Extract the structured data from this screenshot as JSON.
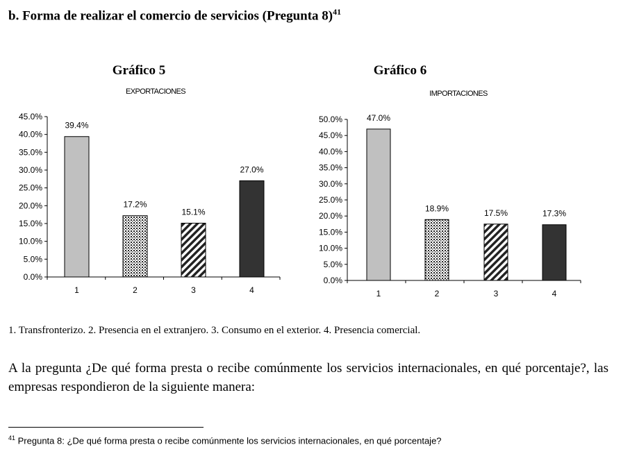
{
  "heading": {
    "text": "b. Forma de realizar el comercio de servicios (Pregunta 8)",
    "footnote_ref": "41"
  },
  "chart_data": [
    {
      "type": "bar",
      "title": "Gráfico 5",
      "subtitle": "EXPORTACIONES",
      "categories": [
        "1",
        "2",
        "3",
        "4"
      ],
      "values": [
        39.4,
        17.2,
        15.1,
        27.0
      ],
      "data_labels": [
        "39.4%",
        "17.2%",
        "15.1%",
        "27.0%"
      ],
      "fills": [
        "solid-gray",
        "dots",
        "diagonal-stripes",
        "solid-dark"
      ],
      "ylim": [
        0,
        45
      ],
      "yticks": [
        "0.0%",
        "5.0%",
        "10.0%",
        "15.0%",
        "20.0%",
        "25.0%",
        "30.0%",
        "35.0%",
        "40.0%",
        "45.0%"
      ],
      "xlabel": "",
      "ylabel": "",
      "grid": false
    },
    {
      "type": "bar",
      "title": "Gráfico 6",
      "subtitle": "IMPORTACIONES",
      "categories": [
        "1",
        "2",
        "3",
        "4"
      ],
      "values": [
        47.0,
        18.9,
        17.5,
        17.3
      ],
      "data_labels": [
        "47.0%",
        "18.9%",
        "17.5%",
        "17.3%"
      ],
      "fills": [
        "solid-gray",
        "dots",
        "diagonal-stripes",
        "solid-dark"
      ],
      "ylim": [
        0,
        50
      ],
      "yticks": [
        "0.0%",
        "5.0%",
        "10.0%",
        "15.0%",
        "20.0%",
        "25.0%",
        "30.0%",
        "35.0%",
        "40.0%",
        "45.0%",
        "50.0%"
      ],
      "xlabel": "",
      "ylabel": "",
      "grid": false
    }
  ],
  "colors": {
    "gray": "#c0c0c0",
    "dark": "#333333"
  },
  "legend": "1. Transfronterizo. 2. Presencia en el extranjero. 3. Consumo en el exterior. 4. Presencia comercial.",
  "paragraph": "A la pregunta ¿De qué forma presta o recibe comúnmente los servicios internacionales, en qué porcentaje?, las empresas respondieron de la siguiente manera:",
  "footnote": {
    "number": "41",
    "text": " Pregunta 8: ¿De qué forma presta o recibe comúnmente los servicios internacionales, en qué porcentaje?"
  }
}
